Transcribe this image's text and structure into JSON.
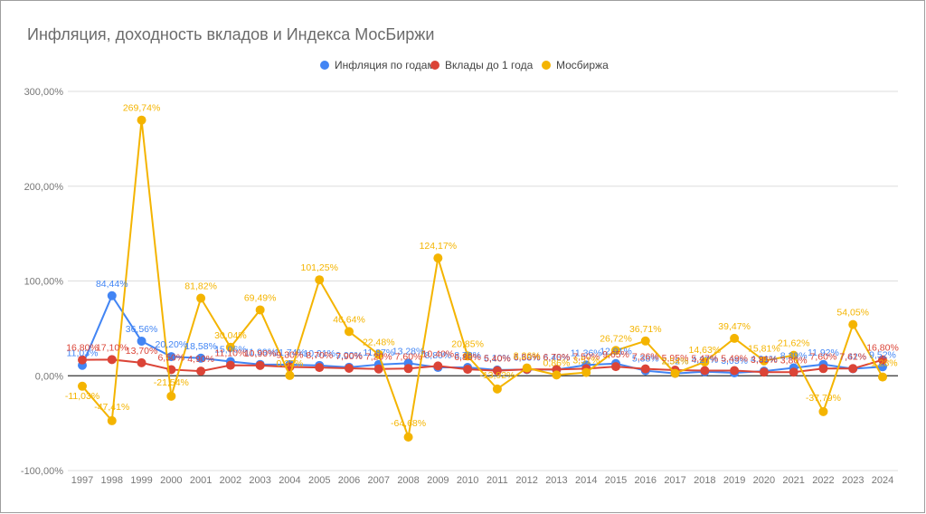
{
  "chart_data": {
    "type": "line",
    "title": "Инфляция, доходность вкладов и Индекса МосБиржи",
    "legend_position": "top",
    "grid": true,
    "xlabel": "",
    "ylabel": "",
    "ylim": [
      -100,
      300
    ],
    "y_ticks": [
      "-100,00%",
      "0,00%",
      "100,00%",
      "200,00%",
      "300,00%"
    ],
    "y_tick_values": [
      -100,
      0,
      100,
      200,
      300
    ],
    "categories": [
      "1997",
      "1998",
      "1999",
      "2000",
      "2001",
      "2002",
      "2003",
      "2004",
      "2005",
      "2006",
      "2007",
      "2008",
      "2009",
      "2010",
      "2011",
      "2012",
      "2013",
      "2014",
      "2015",
      "2016",
      "2017",
      "2018",
      "2019",
      "2020",
      "2021",
      "2022",
      "2023",
      "2024"
    ],
    "series": [
      {
        "name": "Инфляция по годам",
        "color": "#4285f4",
        "values": [
          11.03,
          84.44,
          36.56,
          20.2,
          18.58,
          15.06,
          11.99,
          11.74,
          10.91,
          9.0,
          11.87,
          13.28,
          8.8,
          8.78,
          6.1,
          6.58,
          6.45,
          11.36,
          12.91,
          5.38,
          2.52,
          4.27,
          3.05,
          4.91,
          8.39,
          11.92,
          7.42,
          9.52
        ],
        "labels": [
          "11,03%",
          "84,44%",
          "36,56%",
          "20,20%",
          "18,58%",
          "15,06%",
          "11,99%",
          "11,74%",
          "10,91%",
          "9,00%",
          "11,87%",
          "13,28%",
          "8,80%",
          "8,78%",
          "6,10%",
          "6,58%",
          "6,45%",
          "11,36%",
          "12,91%",
          "5,38%",
          "2,52%",
          "4,27%",
          "3,05%",
          "4,91%",
          "8,39%",
          "11,92%",
          "7,42%",
          "9,52%"
        ]
      },
      {
        "name": "Вклады до 1 года",
        "color": "#db4437",
        "values": [
          16.8,
          17.1,
          13.7,
          6.5,
          4.9,
          11.1,
          10.9,
          9.3,
          8.7,
          7.9,
          7.2,
          7.6,
          10.4,
          6.8,
          5.4,
          6.8,
          6.7,
          7.5,
          9.65,
          7.26,
          5.95,
          5.47,
          5.49,
          3.85,
          3.8,
          7.6,
          7.61,
          16.8
        ],
        "labels": [
          "16,80%",
          "17,10%",
          "13,70%",
          "6,50%",
          "4,90%",
          "11,10%",
          "10,90%",
          "9,30%",
          "8,70%",
          "7,90%",
          "7,20%",
          "7,60%",
          "10,40%",
          "6,80%",
          "5,40%",
          "6,80%",
          "6,70%",
          "7,50%",
          "9,65%",
          "7,26%",
          "5,95%",
          "5,47%",
          "5,49%",
          "3,85%",
          "3,80%",
          "7,60%",
          "7,61%",
          "16,80%"
        ]
      },
      {
        "name": "Мосбиржа",
        "color": "#f4b400",
        "values": [
          -11.03,
          -47.41,
          269.74,
          -21.54,
          81.82,
          30.04,
          69.49,
          0.32,
          101.25,
          46.64,
          22.48,
          -64.68,
          124.17,
          20.85,
          -13.92,
          8.26,
          0.86,
          3.51,
          26.72,
          36.71,
          2.54,
          14.63,
          39.47,
          15.81,
          21.62,
          -37.79,
          54.05,
          -1.28
        ],
        "labels": [
          "-11,03%",
          "-47,41%",
          "269,74%",
          "-21,54%",
          "81,82%",
          "30,04%",
          "69,49%",
          "0,32%",
          "101,25%",
          "46,64%",
          "22,48%",
          "-64,68%",
          "124,17%",
          "20,85%",
          "-13,92%",
          "8,26%",
          "0,86%",
          "3,51%",
          "26,72%",
          "36,71%",
          "2,54%",
          "14,63%",
          "39,47%",
          "15,81%",
          "21,62%",
          "-37,79%",
          "54,05%",
          "-1,28%"
        ]
      }
    ]
  }
}
